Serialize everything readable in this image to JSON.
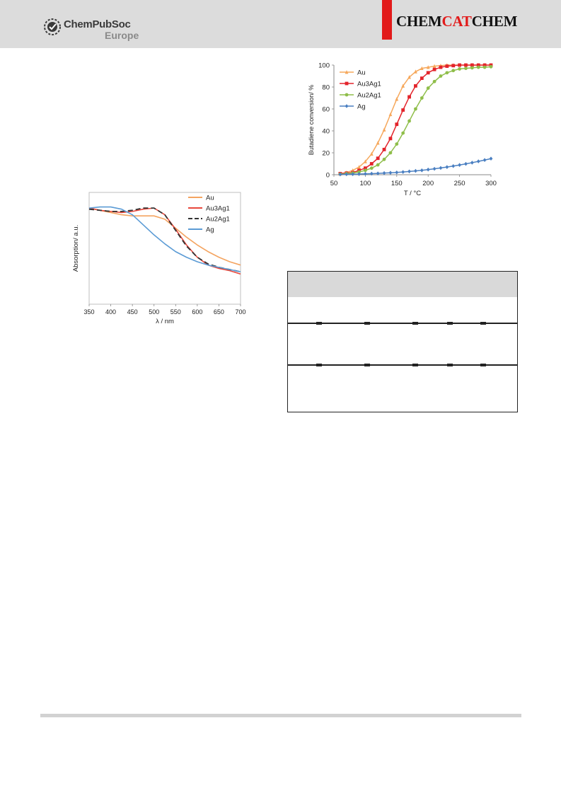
{
  "header": {
    "publisher_name": "ChemPubSoc",
    "publisher_sub": "Europe",
    "journal_part1": "CHEM",
    "journal_part2": "CAT",
    "journal_part3": "CHEM",
    "accent_color": "#e21a1a",
    "band_color": "#dcdcdc"
  },
  "chart_data": [
    {
      "type": "line",
      "xlabel": "λ / nm",
      "ylabel": "Absorption/ a.u.",
      "xlim": [
        350,
        700
      ],
      "ylim": [
        0,
        1
      ],
      "x_ticks": [
        "350",
        "400",
        "450",
        "500",
        "550",
        "600",
        "650",
        "700"
      ],
      "legend": "top-right",
      "grid": false,
      "x": [
        350,
        375,
        400,
        425,
        450,
        475,
        500,
        525,
        550,
        575,
        600,
        625,
        650,
        675,
        700
      ],
      "series": [
        {
          "name": "Au",
          "color": "#f4a460",
          "dash": "none",
          "values": [
            0.86,
            0.84,
            0.82,
            0.8,
            0.79,
            0.79,
            0.79,
            0.76,
            0.68,
            0.6,
            0.53,
            0.47,
            0.42,
            0.38,
            0.35
          ]
        },
        {
          "name": "Au3Ag1",
          "color": "#e8473c",
          "dash": "none",
          "values": [
            0.86,
            0.84,
            0.83,
            0.82,
            0.83,
            0.85,
            0.86,
            0.8,
            0.67,
            0.53,
            0.42,
            0.35,
            0.32,
            0.3,
            0.27
          ]
        },
        {
          "name": "Au2Ag1",
          "color": "#333333",
          "dash": "7,4",
          "values": [
            0.85,
            0.84,
            0.83,
            0.83,
            0.84,
            0.86,
            0.86,
            0.8,
            0.66,
            0.52,
            0.42,
            0.36,
            0.33,
            0.31,
            0.29
          ]
        },
        {
          "name": "Ag",
          "color": "#5b9bd5",
          "dash": "none",
          "values": [
            0.86,
            0.87,
            0.87,
            0.85,
            0.8,
            0.71,
            0.62,
            0.54,
            0.47,
            0.42,
            0.38,
            0.35,
            0.33,
            0.31,
            0.29
          ]
        }
      ]
    },
    {
      "type": "line",
      "xlabel": "T / °C",
      "ylabel": "Butadiene conversion/ %",
      "xlim": [
        50,
        300
      ],
      "ylim": [
        0,
        100
      ],
      "x_ticks": [
        "50",
        "100",
        "150",
        "200",
        "250",
        "300"
      ],
      "y_ticks": [
        "0",
        "20",
        "40",
        "60",
        "80",
        "100"
      ],
      "legend": "top-left",
      "grid": false,
      "x": [
        60,
        70,
        80,
        90,
        100,
        110,
        120,
        130,
        140,
        150,
        160,
        170,
        180,
        190,
        200,
        210,
        220,
        230,
        240,
        250,
        260,
        270,
        280,
        290,
        300
      ],
      "series": [
        {
          "name": "Au",
          "color": "#f6a85c",
          "marker": "triangle",
          "values": [
            1,
            2,
            4,
            7,
            12,
            19,
            29,
            41,
            55,
            69,
            81,
            89,
            94,
            97,
            98,
            99,
            99.5,
            100,
            100,
            100,
            100,
            100,
            100,
            100,
            100
          ]
        },
        {
          "name": "Au3Ag1",
          "color": "#e3242b",
          "marker": "square",
          "values": [
            1,
            1.5,
            2,
            4,
            6,
            10,
            15,
            23,
            33,
            46,
            59,
            71,
            81,
            88,
            93,
            96,
            98,
            99,
            99.5,
            100,
            100,
            100,
            100,
            100,
            100
          ]
        },
        {
          "name": "Au2Ag1",
          "color": "#8fbe4a",
          "marker": "circle",
          "values": [
            0.5,
            1,
            1.5,
            2.5,
            4,
            6,
            9,
            14,
            20,
            28,
            38,
            49,
            60,
            70,
            79,
            85,
            90,
            93,
            95,
            96.5,
            97,
            97.5,
            98,
            98,
            98.5
          ]
        },
        {
          "name": "Ag",
          "color": "#4a7fc1",
          "marker": "diamond",
          "values": [
            0.3,
            0.4,
            0.5,
            0.6,
            0.8,
            1,
            1.2,
            1.5,
            1.8,
            2.1,
            2.5,
            3,
            3.5,
            4,
            4.7,
            5.4,
            6.2,
            7,
            7.9,
            8.9,
            9.9,
            11,
            12.2,
            13.4,
            14.7
          ]
        }
      ]
    }
  ],
  "table": {
    "header_color": "#d9d9d9"
  },
  "footer": {
    "rule_color": "#d2d2d2"
  }
}
